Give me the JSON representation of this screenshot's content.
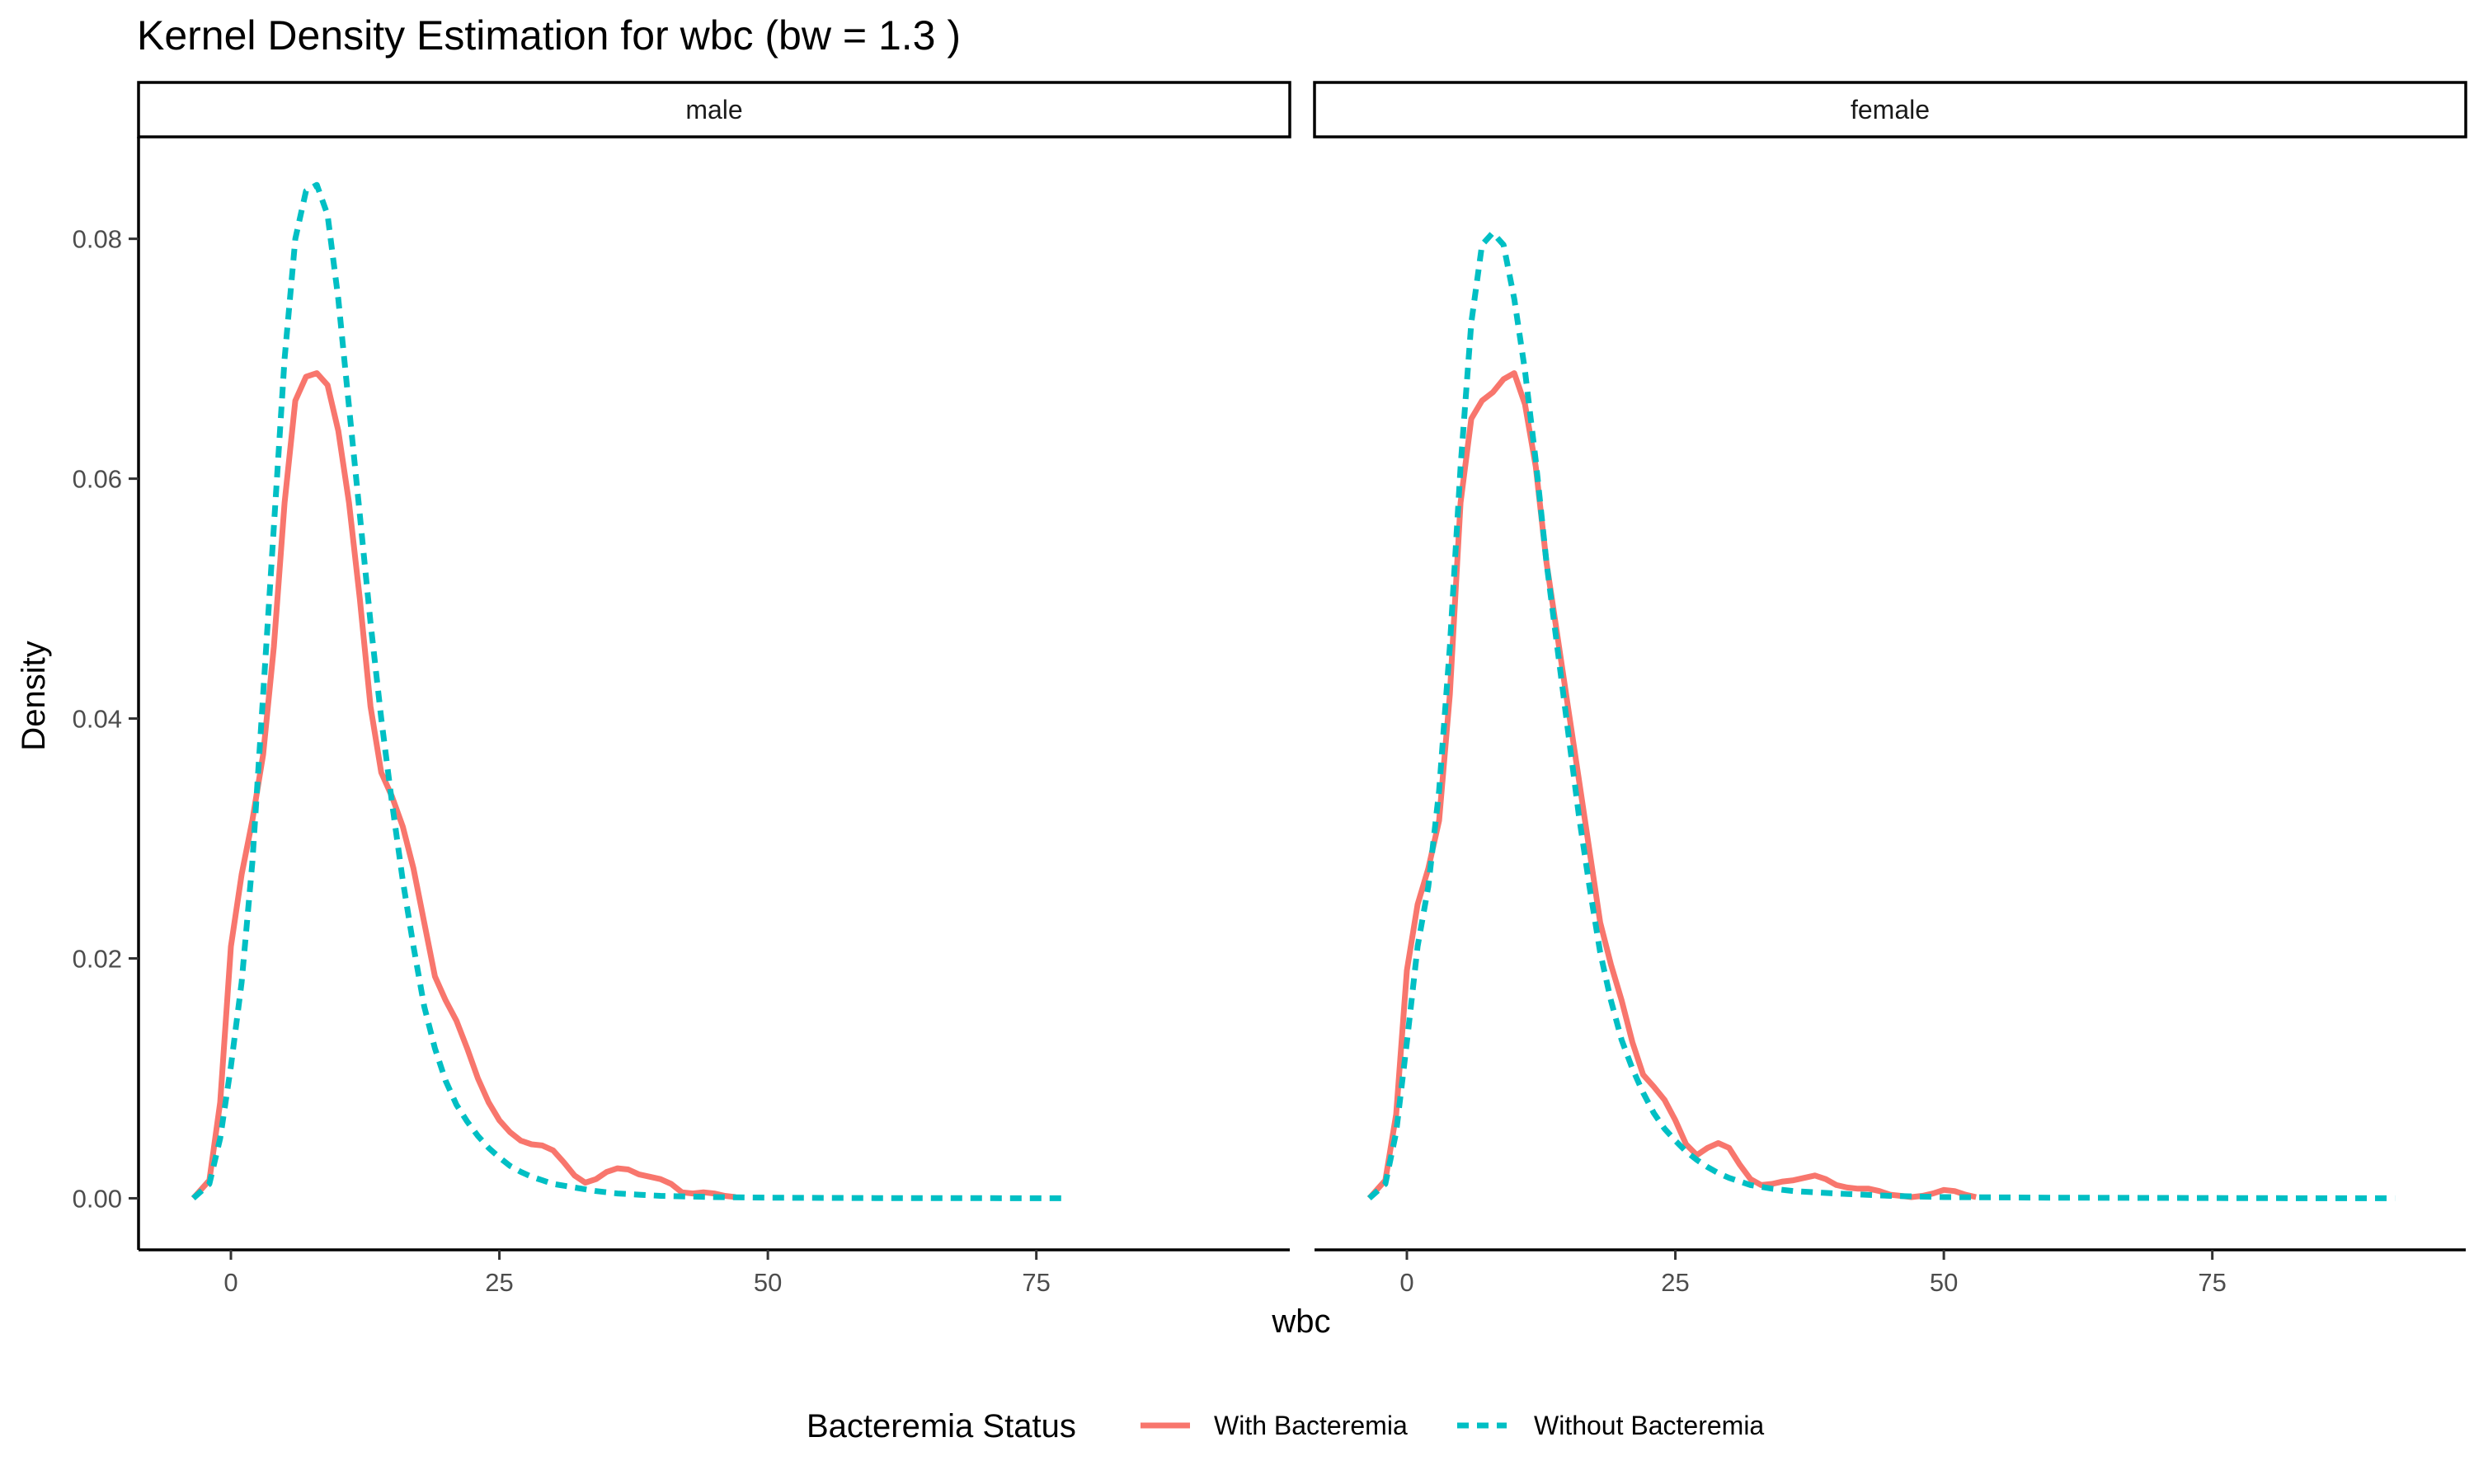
{
  "chart_data": {
    "type": "line",
    "title": "Kernel Density Estimation for wbc (bw = 1.3 )",
    "xlabel": "wbc",
    "ylabel": "Density",
    "xlim": [
      -8.6,
      98.6
    ],
    "ylim": [
      -0.0043,
      0.0885
    ],
    "xticks": [
      0,
      25,
      50,
      75
    ],
    "xtick_labels": [
      "0",
      "25",
      "50",
      "75"
    ],
    "yticks": [
      0,
      0.02,
      0.04,
      0.06,
      0.08
    ],
    "ytick_labels": [
      "0.00",
      "0.02",
      "0.04",
      "0.06",
      "0.08"
    ],
    "grid": false,
    "legend": {
      "title": "Bacteremia Status",
      "position": "bottom",
      "entries": [
        "With Bacteremia",
        "Without Bacteremia"
      ]
    },
    "series_styles": [
      {
        "name": "With Bacteremia",
        "color": "#F8766D",
        "dash": "solid"
      },
      {
        "name": "Without Bacteremia",
        "color": "#00BFC4",
        "dash": "dashed"
      }
    ],
    "panels": [
      {
        "label": "male",
        "series": [
          {
            "name": "With Bacteremia",
            "x": [
              -3.5,
              -2,
              -1,
              0,
              1,
              2,
              3,
              4,
              5,
              6,
              7,
              8,
              9,
              10,
              11,
              12,
              13,
              14,
              15,
              16,
              17,
              18,
              19,
              20,
              21,
              22,
              23,
              24,
              25,
              26,
              27,
              28,
              29,
              30,
              31,
              32,
              33,
              34,
              35,
              36,
              37,
              38,
              39,
              40,
              41,
              42,
              43,
              44,
              45,
              46,
              47
            ],
            "y": [
              0,
              0.0015,
              0.008,
              0.021,
              0.027,
              0.0315,
              0.037,
              0.046,
              0.058,
              0.0665,
              0.0685,
              0.0688,
              0.0678,
              0.064,
              0.058,
              0.05,
              0.041,
              0.0355,
              0.0335,
              0.031,
              0.0275,
              0.023,
              0.0185,
              0.0165,
              0.0148,
              0.0125,
              0.01,
              0.008,
              0.0065,
              0.0055,
              0.0048,
              0.0045,
              0.0044,
              0.004,
              0.003,
              0.0019,
              0.0013,
              0.0016,
              0.0022,
              0.0025,
              0.0024,
              0.002,
              0.0018,
              0.0016,
              0.0012,
              0.0005,
              0.0004,
              0.0005,
              0.0004,
              0.0002,
              0.0001
            ]
          },
          {
            "name": "Without Bacteremia",
            "x": [
              -3.5,
              -2,
              -1,
              0,
              1,
              2,
              3,
              4,
              5,
              6,
              7,
              8,
              9,
              10,
              11,
              12,
              13,
              14,
              15,
              16,
              17,
              18,
              19,
              20,
              21,
              22,
              23,
              24,
              25,
              26,
              27,
              28,
              29,
              30,
              32,
              34,
              36,
              38,
              40,
              45,
              50,
              60,
              70,
              77.5
            ],
            "y": [
              0,
              0.0012,
              0.005,
              0.011,
              0.018,
              0.028,
              0.042,
              0.056,
              0.07,
              0.08,
              0.084,
              0.0845,
              0.082,
              0.075,
              0.066,
              0.057,
              0.048,
              0.04,
              0.033,
              0.0265,
              0.021,
              0.016,
              0.0125,
              0.0098,
              0.0078,
              0.0064,
              0.0052,
              0.0042,
              0.0034,
              0.0027,
              0.0022,
              0.0018,
              0.0015,
              0.0012,
              0.0009,
              0.0006,
              0.0004,
              0.0003,
              0.0002,
              0.0001,
              5e-05,
              2e-05,
              1e-05,
              0
            ]
          }
        ]
      },
      {
        "label": "female",
        "series": [
          {
            "name": "With Bacteremia",
            "x": [
              -3.5,
              -2,
              -1,
              0,
              1,
              2,
              3,
              4,
              5,
              6,
              7,
              8,
              9,
              10,
              11,
              12,
              13,
              14,
              15,
              16,
              17,
              18,
              19,
              20,
              21,
              22,
              23,
              24,
              25,
              26,
              27,
              28,
              29,
              30,
              31,
              32,
              33,
              34,
              35,
              36,
              37,
              38,
              39,
              40,
              41,
              42,
              43,
              44,
              45,
              46,
              47,
              48,
              49,
              50,
              51,
              52,
              53
            ],
            "y": [
              0,
              0.0015,
              0.007,
              0.019,
              0.0245,
              0.0275,
              0.0315,
              0.042,
              0.058,
              0.065,
              0.0665,
              0.0672,
              0.0683,
              0.0688,
              0.0662,
              0.061,
              0.053,
              0.047,
              0.041,
              0.035,
              0.029,
              0.023,
              0.0195,
              0.0165,
              0.013,
              0.0103,
              0.0093,
              0.0082,
              0.0065,
              0.0045,
              0.0036,
              0.0042,
              0.0046,
              0.0042,
              0.0028,
              0.0016,
              0.0011,
              0.0012,
              0.0014,
              0.0015,
              0.0017,
              0.0019,
              0.0016,
              0.0011,
              0.0009,
              0.0008,
              0.0008,
              0.0006,
              0.0003,
              0.0002,
              0.0001,
              0.0002,
              0.0004,
              0.0007,
              0.0006,
              0.0003,
              0.0001
            ]
          },
          {
            "name": "Without Bacteremia",
            "x": [
              -3.5,
              -2,
              -1,
              0,
              1,
              2,
              3,
              4,
              5,
              6,
              7,
              8,
              9,
              10,
              11,
              12,
              13,
              14,
              15,
              16,
              17,
              18,
              19,
              20,
              21,
              22,
              23,
              24,
              25,
              26,
              27,
              28,
              29,
              30,
              32,
              34,
              36,
              38,
              40,
              45,
              50,
              60,
              70,
              80,
              92
            ],
            "y": [
              0,
              0.0012,
              0.0055,
              0.013,
              0.021,
              0.026,
              0.034,
              0.046,
              0.061,
              0.073,
              0.0795,
              0.0805,
              0.0795,
              0.075,
              0.069,
              0.0615,
              0.053,
              0.046,
              0.039,
              0.032,
              0.026,
              0.0205,
              0.0165,
              0.0132,
              0.0108,
              0.0088,
              0.0071,
              0.0058,
              0.0048,
              0.0039,
              0.0032,
              0.0026,
              0.0021,
              0.0017,
              0.0011,
              0.0008,
              0.0006,
              0.0005,
              0.0004,
              0.0002,
              0.0001,
              5e-05,
              3e-05,
              1e-05,
              0
            ]
          }
        ]
      }
    ]
  }
}
